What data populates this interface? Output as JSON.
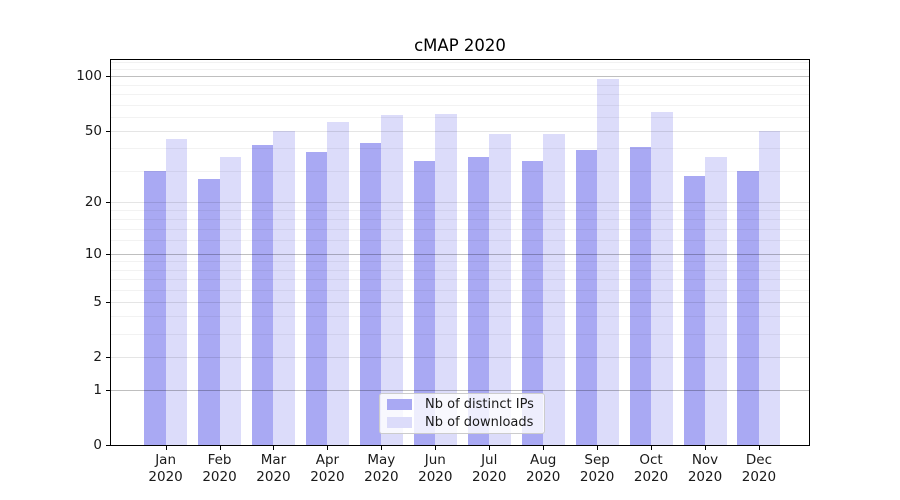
{
  "chart_data": {
    "type": "bar",
    "title": "cMAP 2020",
    "categories": [
      "Jan 2020",
      "Feb 2020",
      "Mar 2020",
      "Apr 2020",
      "May 2020",
      "Jun 2020",
      "Jul 2020",
      "Aug 2020",
      "Sep 2020",
      "Oct 2020",
      "Nov 2020",
      "Dec 2020"
    ],
    "series": [
      {
        "name": "Nb of distinct IPs",
        "color": "#a9a9f3",
        "values": [
          30,
          27,
          42,
          38,
          43,
          34,
          36,
          34,
          39,
          41,
          28,
          30
        ]
      },
      {
        "name": "Nb of downloads",
        "color": "#dcdcfa",
        "values": [
          45,
          36,
          50,
          56,
          61,
          62,
          48,
          48,
          97,
          64,
          36,
          50
        ]
      }
    ],
    "xlabel": "",
    "ylabel": "",
    "yscale": "log1p",
    "ylim": [
      0,
      121
    ],
    "y_tick_values": [
      0,
      1,
      2,
      5,
      10,
      20,
      50,
      100
    ],
    "y_tick_labels": [
      "0",
      "1",
      "2",
      "5",
      "10",
      "20",
      "50",
      "100"
    ],
    "grid": {
      "major": [
        1,
        10,
        100
      ],
      "mid": [
        2,
        5,
        20,
        50
      ],
      "minor": [
        3,
        4,
        6,
        7,
        8,
        9,
        12,
        14,
        16,
        18,
        30,
        40,
        60,
        70,
        80,
        90,
        110,
        120
      ]
    },
    "grid_on": true,
    "legend_position": "lower center"
  }
}
